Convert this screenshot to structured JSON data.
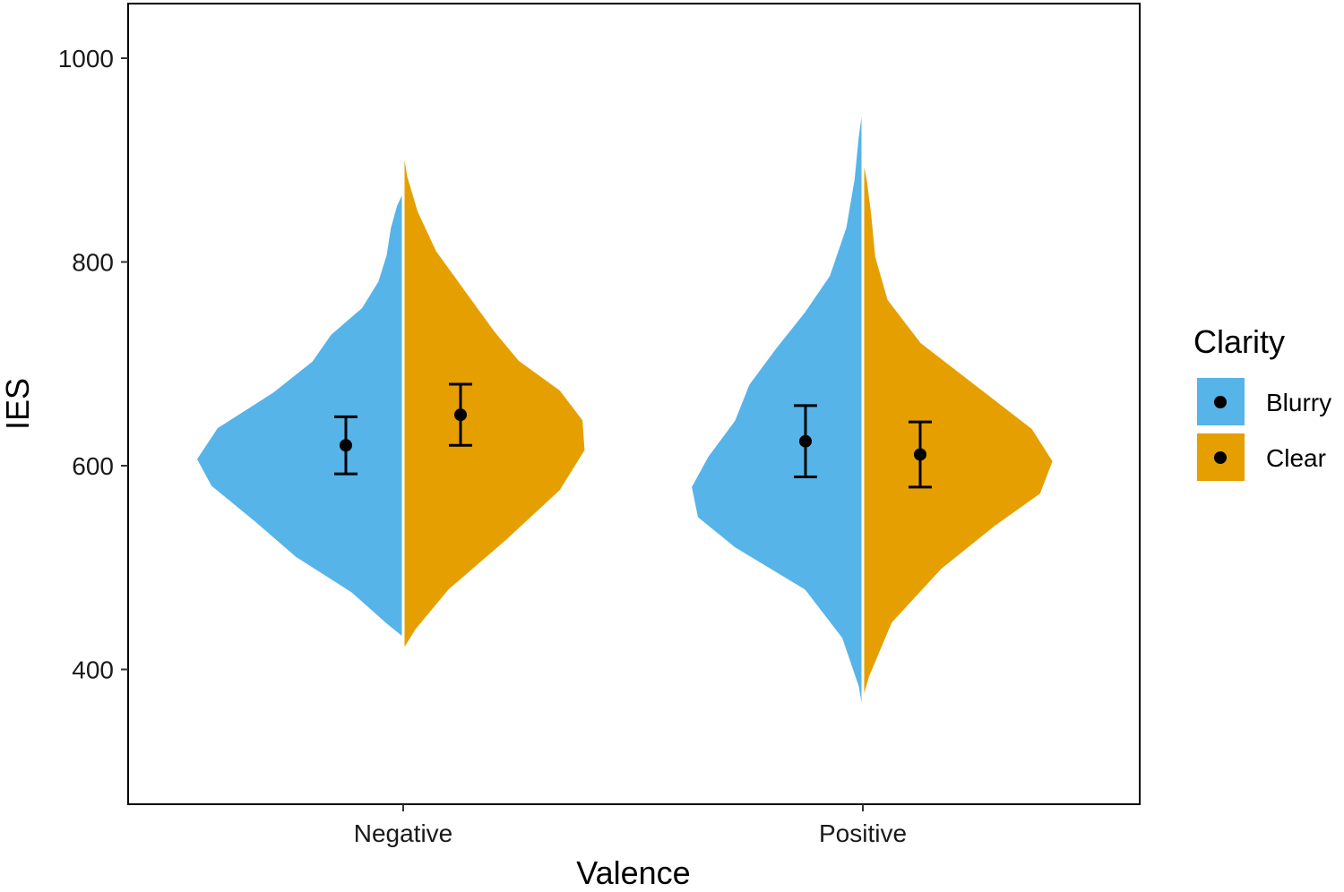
{
  "chart_data": {
    "type": "split-violin",
    "xlabel": "Valence",
    "ylabel": "IES",
    "categories": [
      "Negative",
      "Positive"
    ],
    "ylim": [
      290,
      1050
    ],
    "yticks": [
      400,
      600,
      800,
      1000
    ],
    "grid": false,
    "legend": {
      "title": "Clarity",
      "position": "right"
    },
    "series": [
      {
        "name": "Blurry",
        "color": "#56B4E9",
        "side": "left",
        "points": [
          {
            "x": "Negative",
            "mean": 620,
            "ci_low": 592,
            "ci_high": 648,
            "range": [
              432,
              868
            ]
          },
          {
            "x": "Positive",
            "mean": 624,
            "ci_low": 589,
            "ci_high": 659,
            "range": [
              360,
              952
            ]
          }
        ]
      },
      {
        "name": "Clear",
        "color": "#E69F00",
        "side": "right",
        "points": [
          {
            "x": "Negative",
            "mean": 650,
            "ci_low": 620,
            "ci_high": 680,
            "range": [
              420,
              908
            ]
          },
          {
            "x": "Positive",
            "mean": 611,
            "ci_low": 579,
            "ci_high": 643,
            "range": [
              372,
              900
            ]
          }
        ]
      }
    ]
  }
}
